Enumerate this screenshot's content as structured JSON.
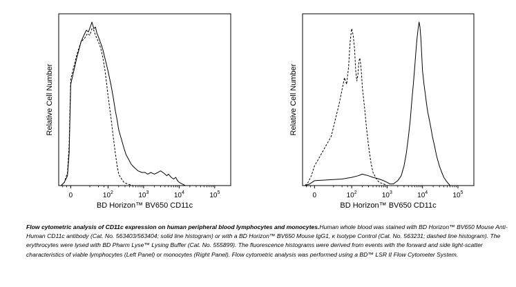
{
  "chart_data": [
    {
      "type": "line",
      "panel": "Left",
      "xlabel": "BD Horizon™ BV650 CD11c",
      "ylabel": "Relative Cell Number",
      "x_scale": "biexponential",
      "x_ticks": [
        {
          "base": "0",
          "exp": ""
        },
        {
          "base": "10",
          "exp": "2"
        },
        {
          "base": "10",
          "exp": "3"
        },
        {
          "base": "10",
          "exp": "4"
        },
        {
          "base": "10",
          "exp": "5"
        }
      ],
      "x_tick_values": [
        0,
        100,
        1000,
        10000,
        100000
      ],
      "ylim": [
        0,
        100
      ],
      "grid": false,
      "series": [
        {
          "style": "solid",
          "points": [
            [
              -60,
              0
            ],
            [
              -40,
              2
            ],
            [
              -20,
              6
            ],
            [
              -10,
              20
            ],
            [
              -5,
              40
            ],
            [
              0,
              62
            ],
            [
              5,
              78
            ],
            [
              10,
              88
            ],
            [
              14,
              92
            ],
            [
              18,
              95
            ],
            [
              22,
              94
            ],
            [
              26,
              97
            ],
            [
              30,
              100
            ],
            [
              35,
              96
            ],
            [
              40,
              97
            ],
            [
              45,
              93
            ],
            [
              50,
              91
            ],
            [
              60,
              87
            ],
            [
              70,
              83
            ],
            [
              80,
              78
            ],
            [
              90,
              74
            ],
            [
              100,
              70
            ],
            [
              120,
              62
            ],
            [
              140,
              54
            ],
            [
              160,
              46
            ],
            [
              180,
              40
            ],
            [
              200,
              34
            ],
            [
              240,
              28
            ],
            [
              280,
              23
            ],
            [
              320,
              19
            ],
            [
              380,
              16
            ],
            [
              450,
              13
            ],
            [
              550,
              11
            ],
            [
              700,
              9
            ],
            [
              900,
              8
            ],
            [
              1100,
              8
            ],
            [
              1300,
              7
            ],
            [
              1600,
              8
            ],
            [
              2000,
              7
            ],
            [
              2500,
              8
            ],
            [
              3000,
              9
            ],
            [
              3500,
              8
            ],
            [
              4000,
              7
            ],
            [
              4500,
              6
            ],
            [
              5000,
              7
            ],
            [
              6000,
              5
            ],
            [
              7000,
              4
            ],
            [
              8000,
              5
            ],
            [
              9000,
              3
            ],
            [
              10000,
              2
            ],
            [
              12000,
              1
            ],
            [
              15000,
              0
            ]
          ]
        },
        {
          "style": "dashed",
          "points": [
            [
              -60,
              0
            ],
            [
              -40,
              2
            ],
            [
              -20,
              8
            ],
            [
              -10,
              25
            ],
            [
              -5,
              45
            ],
            [
              0,
              65
            ],
            [
              5,
              80
            ],
            [
              10,
              88
            ],
            [
              15,
              90
            ],
            [
              20,
              93
            ],
            [
              25,
              92
            ],
            [
              30,
              96
            ],
            [
              35,
              95
            ],
            [
              40,
              92
            ],
            [
              50,
              88
            ],
            [
              60,
              84
            ],
            [
              70,
              78
            ],
            [
              80,
              71
            ],
            [
              90,
              63
            ],
            [
              100,
              55
            ],
            [
              120,
              42
            ],
            [
              140,
              30
            ],
            [
              160,
              20
            ],
            [
              180,
              12
            ],
            [
              200,
              7
            ],
            [
              240,
              4
            ],
            [
              280,
              2
            ],
            [
              350,
              1
            ],
            [
              500,
              0
            ]
          ]
        }
      ]
    },
    {
      "type": "line",
      "panel": "Right",
      "xlabel": "BD Horizon™ BV650 CD11c",
      "ylabel": "Relative Cell Number",
      "x_scale": "biexponential",
      "x_ticks": [
        {
          "base": "0",
          "exp": ""
        },
        {
          "base": "10",
          "exp": "2"
        },
        {
          "base": "10",
          "exp": "3"
        },
        {
          "base": "10",
          "exp": "4"
        },
        {
          "base": "10",
          "exp": "5"
        }
      ],
      "x_tick_values": [
        0,
        100,
        1000,
        10000,
        100000
      ],
      "ylim": [
        0,
        100
      ],
      "grid": false,
      "series": [
        {
          "style": "solid",
          "points": [
            [
              -60,
              0
            ],
            [
              -30,
              1
            ],
            [
              0,
              3
            ],
            [
              50,
              4
            ],
            [
              100,
              5
            ],
            [
              150,
              6
            ],
            [
              200,
              7
            ],
            [
              300,
              6
            ],
            [
              400,
              5
            ],
            [
              600,
              4
            ],
            [
              800,
              3
            ],
            [
              1000,
              2
            ],
            [
              1200,
              1
            ],
            [
              1500,
              1
            ],
            [
              2000,
              3
            ],
            [
              2500,
              6
            ],
            [
              3000,
              12
            ],
            [
              3500,
              20
            ],
            [
              4000,
              30
            ],
            [
              4500,
              40
            ],
            [
              5000,
              52
            ],
            [
              5500,
              62
            ],
            [
              6000,
              72
            ],
            [
              6500,
              82
            ],
            [
              7000,
              90
            ],
            [
              7500,
              96
            ],
            [
              8000,
              100
            ],
            [
              8500,
              97
            ],
            [
              9000,
              90
            ],
            [
              9500,
              80
            ],
            [
              10000,
              70
            ],
            [
              11000,
              62
            ],
            [
              12000,
              56
            ],
            [
              13000,
              50
            ],
            [
              14000,
              45
            ],
            [
              15000,
              42
            ],
            [
              17000,
              36
            ],
            [
              19000,
              30
            ],
            [
              22000,
              24
            ],
            [
              25000,
              18
            ],
            [
              30000,
              12
            ],
            [
              35000,
              8
            ],
            [
              40000,
              5
            ],
            [
              50000,
              2
            ],
            [
              60000,
              0
            ]
          ]
        },
        {
          "style": "dashed",
          "points": [
            [
              -60,
              0
            ],
            [
              -40,
              2
            ],
            [
              -20,
              6
            ],
            [
              0,
              12
            ],
            [
              20,
              30
            ],
            [
              40,
              50
            ],
            [
              60,
              66
            ],
            [
              70,
              62
            ],
            [
              80,
              72
            ],
            [
              90,
              88
            ],
            [
              100,
              96
            ],
            [
              110,
              92
            ],
            [
              120,
              84
            ],
            [
              130,
              70
            ],
            [
              140,
              64
            ],
            [
              150,
              68
            ],
            [
              160,
              76
            ],
            [
              170,
              78
            ],
            [
              180,
              74
            ],
            [
              190,
              68
            ],
            [
              200,
              60
            ],
            [
              230,
              48
            ],
            [
              260,
              36
            ],
            [
              300,
              24
            ],
            [
              350,
              14
            ],
            [
              400,
              8
            ],
            [
              500,
              4
            ],
            [
              600,
              2
            ],
            [
              800,
              1
            ],
            [
              1000,
              0
            ]
          ]
        }
      ]
    }
  ],
  "caption": {
    "bold": "Flow cytometric analysis of CD11c expression on human peripheral blood lymphocytes and monocytes.",
    "body": "Human whole blood was stained with BD Horizon™ BV650 Mouse Anti-Human CD11c antibody (Cat. No. 563403/563404; solid line histogram) or with a BD Horizon™ BV650 Mouse IgG1, κ Isotype Control (Cat. No. 563231; dashed line histogram). The erythrocytes were lysed with BD Pharm Lyse™ Lysing Buffer (Cat. No. 555899). The fluorescence histograms were derived from events with the forward and side light-scatter characteristics of viable lymphocytes (Left Panel) or monocytes (Right Panel). Flow cytometric analysis was performed using a BD™ LSR II Flow Cytometer System."
  }
}
